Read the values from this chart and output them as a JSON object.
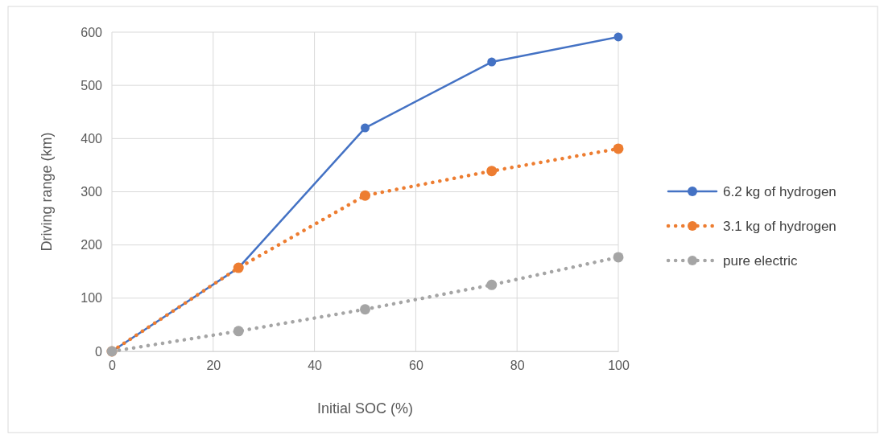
{
  "chart_data": {
    "type": "line",
    "xlabel": "Initial SOC (%)",
    "ylabel": "Driving range (km)",
    "x": [
      0,
      25,
      50,
      75,
      100
    ],
    "series": [
      {
        "name": "6.2 kg of hydrogen",
        "color": "#4472c4",
        "values": [
          0,
          157,
          420,
          544,
          591
        ],
        "line_style": "solid"
      },
      {
        "name": "3.1 kg of hydrogen",
        "color": "#ed7d31",
        "values": [
          0,
          157,
          293,
          339,
          381
        ],
        "line_style": "dotted"
      },
      {
        "name": "pure electric",
        "color": "#a5a5a5",
        "values": [
          0,
          38,
          79,
          125,
          177
        ],
        "line_style": "dotted"
      }
    ],
    "xlim": [
      0,
      100
    ],
    "xticks": [
      0,
      20,
      40,
      60,
      80,
      100
    ],
    "ylim": [
      0,
      600
    ],
    "yticks": [
      0,
      100,
      200,
      300,
      400,
      500,
      600
    ],
    "grid": true,
    "legend": "right",
    "marker": "circle"
  }
}
